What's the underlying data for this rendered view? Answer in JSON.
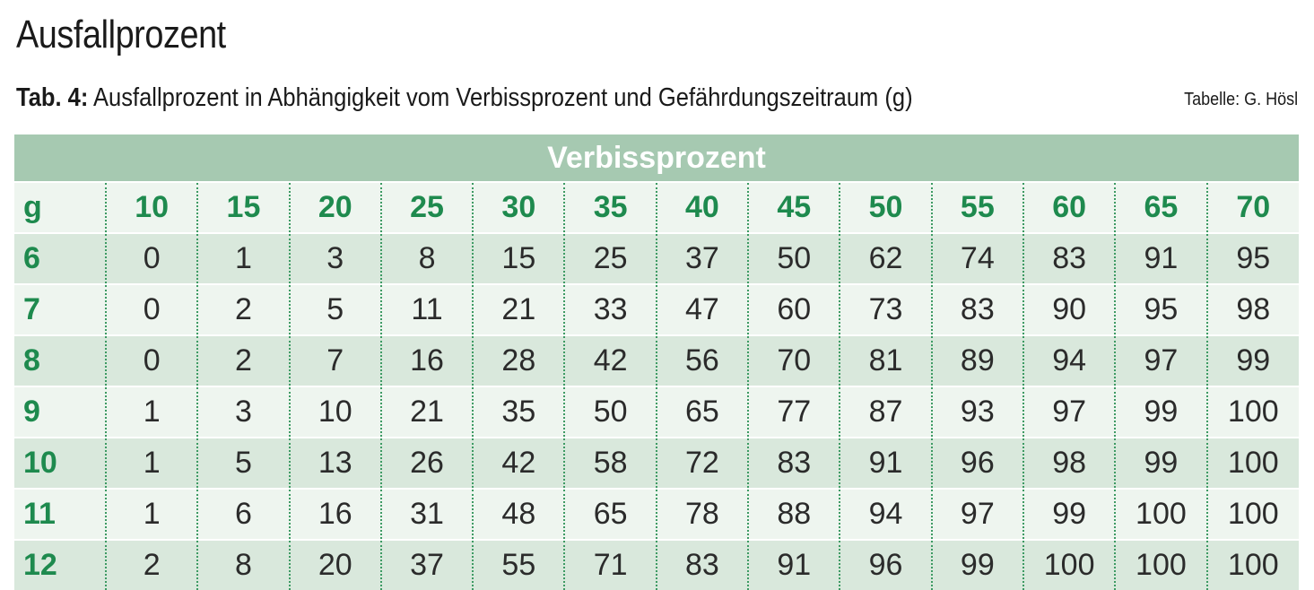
{
  "title": "Ausfallprozent",
  "caption": {
    "label": "Tab. 4:",
    "text": " Ausfallprozent in Abhängigkeit vom Verbissprozent und Gefährdungszeitraum (g)"
  },
  "credit": "Tabelle: G. Hösl",
  "table": {
    "group_header": "Verbissprozent",
    "row_header_label": "g",
    "columns": [
      "10",
      "15",
      "20",
      "25",
      "30",
      "35",
      "40",
      "45",
      "50",
      "55",
      "60",
      "65",
      "70"
    ],
    "rows": [
      {
        "g": "6",
        "values": [
          "0",
          "1",
          "3",
          "8",
          "15",
          "25",
          "37",
          "50",
          "62",
          "74",
          "83",
          "91",
          "95"
        ]
      },
      {
        "g": "7",
        "values": [
          "0",
          "2",
          "5",
          "11",
          "21",
          "33",
          "47",
          "60",
          "73",
          "83",
          "90",
          "95",
          "98"
        ]
      },
      {
        "g": "8",
        "values": [
          "0",
          "2",
          "7",
          "16",
          "28",
          "42",
          "56",
          "70",
          "81",
          "89",
          "94",
          "97",
          "99"
        ]
      },
      {
        "g": "9",
        "values": [
          "1",
          "3",
          "10",
          "21",
          "35",
          "50",
          "65",
          "77",
          "87",
          "93",
          "97",
          "99",
          "100"
        ]
      },
      {
        "g": "10",
        "values": [
          "1",
          "5",
          "13",
          "26",
          "42",
          "58",
          "72",
          "83",
          "91",
          "96",
          "98",
          "99",
          "100"
        ]
      },
      {
        "g": "11",
        "values": [
          "1",
          "6",
          "16",
          "31",
          "48",
          "65",
          "78",
          "88",
          "94",
          "97",
          "99",
          "100",
          "100"
        ]
      },
      {
        "g": "12",
        "values": [
          "2",
          "8",
          "20",
          "37",
          "55",
          "71",
          "83",
          "91",
          "96",
          "99",
          "100",
          "100",
          "100"
        ]
      }
    ]
  }
}
